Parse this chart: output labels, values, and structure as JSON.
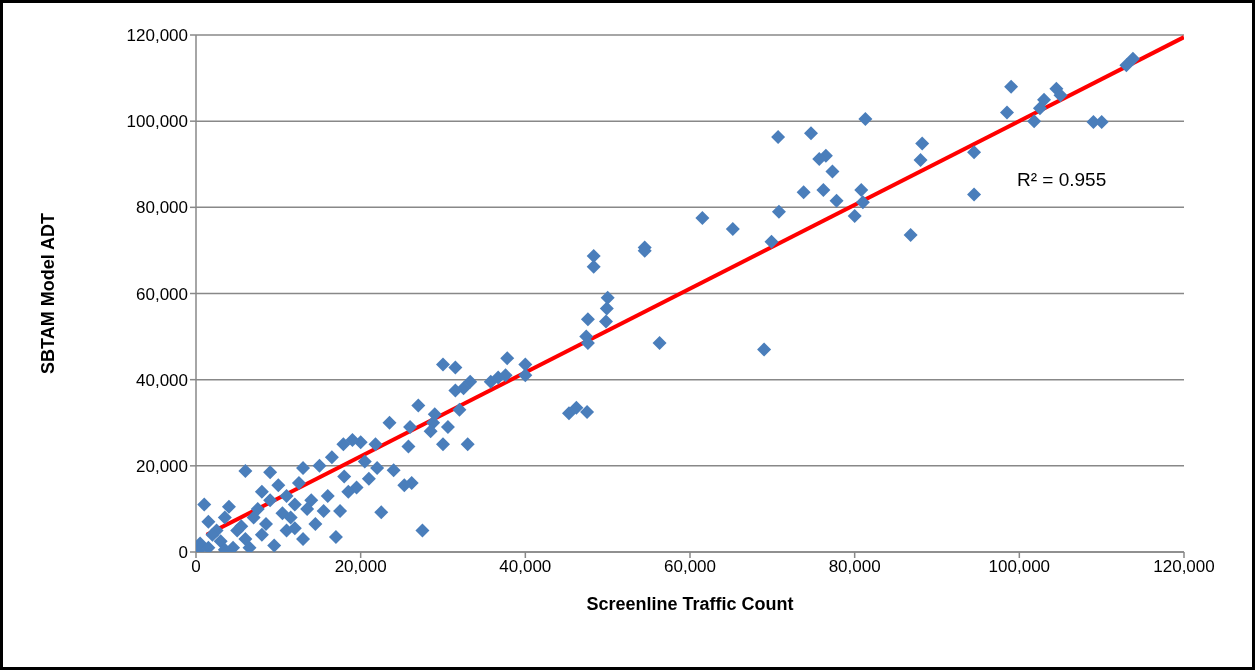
{
  "chart_data": {
    "type": "scatter",
    "xlabel": "Screenline Traffic Count",
    "ylabel": "SBTAM Model ADT",
    "xlim": [
      0,
      120000
    ],
    "ylim": [
      0,
      120000
    ],
    "xticks": [
      {
        "value": 0,
        "label": "0"
      },
      {
        "value": 20000,
        "label": "20,000"
      },
      {
        "value": 40000,
        "label": "40,000"
      },
      {
        "value": 60000,
        "label": "60,000"
      },
      {
        "value": 80000,
        "label": "80,000"
      },
      {
        "value": 100000,
        "label": "100,000"
      },
      {
        "value": 120000,
        "label": "120,000"
      }
    ],
    "yticks": [
      {
        "value": 0,
        "label": "0"
      },
      {
        "value": 20000,
        "label": "20,000"
      },
      {
        "value": 40000,
        "label": "40,000"
      },
      {
        "value": 60000,
        "label": "60,000"
      },
      {
        "value": 80000,
        "label": "80,000"
      },
      {
        "value": 100000,
        "label": "100,000"
      },
      {
        "value": 120000,
        "label": "120,000"
      }
    ],
    "grid": "y",
    "marker": "diamond",
    "annotations": [
      "R² = 0.955"
    ],
    "series": [
      {
        "color": "#4a7ebb",
        "x": [
          98500,
          99000,
          101800,
          102500,
          103000,
          104500,
          105000,
          109000,
          110000,
          113000,
          113800,
          94500,
          94500,
          88000,
          88200,
          86800,
          81300,
          80800,
          81000,
          80000,
          77800,
          77300,
          76500,
          75700,
          76200,
          74700,
          73800,
          70700,
          70800,
          69900,
          69000,
          65200,
          61500,
          56300,
          54500,
          54500,
          50000,
          49900,
          49800,
          48300,
          48300,
          47600,
          47400,
          47600,
          47500,
          46200,
          45300,
          40000,
          40000,
          37800,
          37600,
          36700,
          35800,
          33300,
          32500,
          31500,
          32000,
          31500,
          30000,
          30600,
          33000,
          30000,
          28800,
          29000,
          28500,
          27000,
          26000,
          27500,
          25800,
          26200,
          25300,
          23500,
          22500,
          21800,
          20000,
          19000,
          17900,
          22000,
          24000,
          21000,
          19500,
          18500,
          17500,
          17000,
          16500,
          15000,
          13000,
          12500,
          11000,
          10000,
          9000,
          6000,
          8000,
          10500,
          12000,
          14000,
          15500,
          14500,
          13000,
          11000,
          9500,
          8000,
          7000,
          5500,
          4000,
          3500,
          2500,
          1500,
          1000,
          500,
          1500,
          3000,
          4500,
          6000,
          5000,
          2000,
          7500,
          9000,
          11500,
          13500,
          16000,
          18000,
          20500,
          12000,
          8500,
          6500,
          3500,
          300
        ],
        "values": [
          102000,
          108000,
          100000,
          103000,
          105000,
          107500,
          106000,
          99800,
          99800,
          113000,
          114500,
          92800,
          83000,
          91000,
          94800,
          73600,
          100500,
          84000,
          81200,
          78000,
          81500,
          88300,
          92000,
          91200,
          84000,
          97200,
          83500,
          96300,
          79000,
          72000,
          47000,
          75000,
          77500,
          48500,
          70700,
          69900,
          59000,
          56500,
          53500,
          68700,
          66200,
          54000,
          50000,
          48500,
          32500,
          33500,
          32200,
          43500,
          41000,
          45000,
          41000,
          40500,
          39500,
          39500,
          38000,
          37500,
          33000,
          42800,
          43500,
          29000,
          25000,
          25000,
          30000,
          32000,
          28000,
          34000,
          29000,
          5000,
          24500,
          16000,
          15500,
          30000,
          9200,
          25000,
          25500,
          26000,
          25000,
          19500,
          19000,
          17000,
          15000,
          14000,
          9500,
          3500,
          22000,
          20000,
          19500,
          16000,
          13000,
          15500,
          18500,
          18800,
          14000,
          9000,
          11000,
          12000,
          9500,
          6500,
          3000,
          5000,
          1500,
          4000,
          8000,
          6000,
          10500,
          8000,
          5000,
          7000,
          11000,
          2000,
          1000,
          2500,
          1000,
          3000,
          5000,
          4000,
          10000,
          12000,
          8000,
          10000,
          13000,
          17500,
          21000,
          5500,
          6500,
          1000,
          500,
          300
        ]
      },
      {
        "type": "line",
        "color": "#ff0000",
        "marker": "none",
        "x": [
          1300,
          120000
        ],
        "values": [
          4000,
          119500
        ]
      }
    ]
  }
}
